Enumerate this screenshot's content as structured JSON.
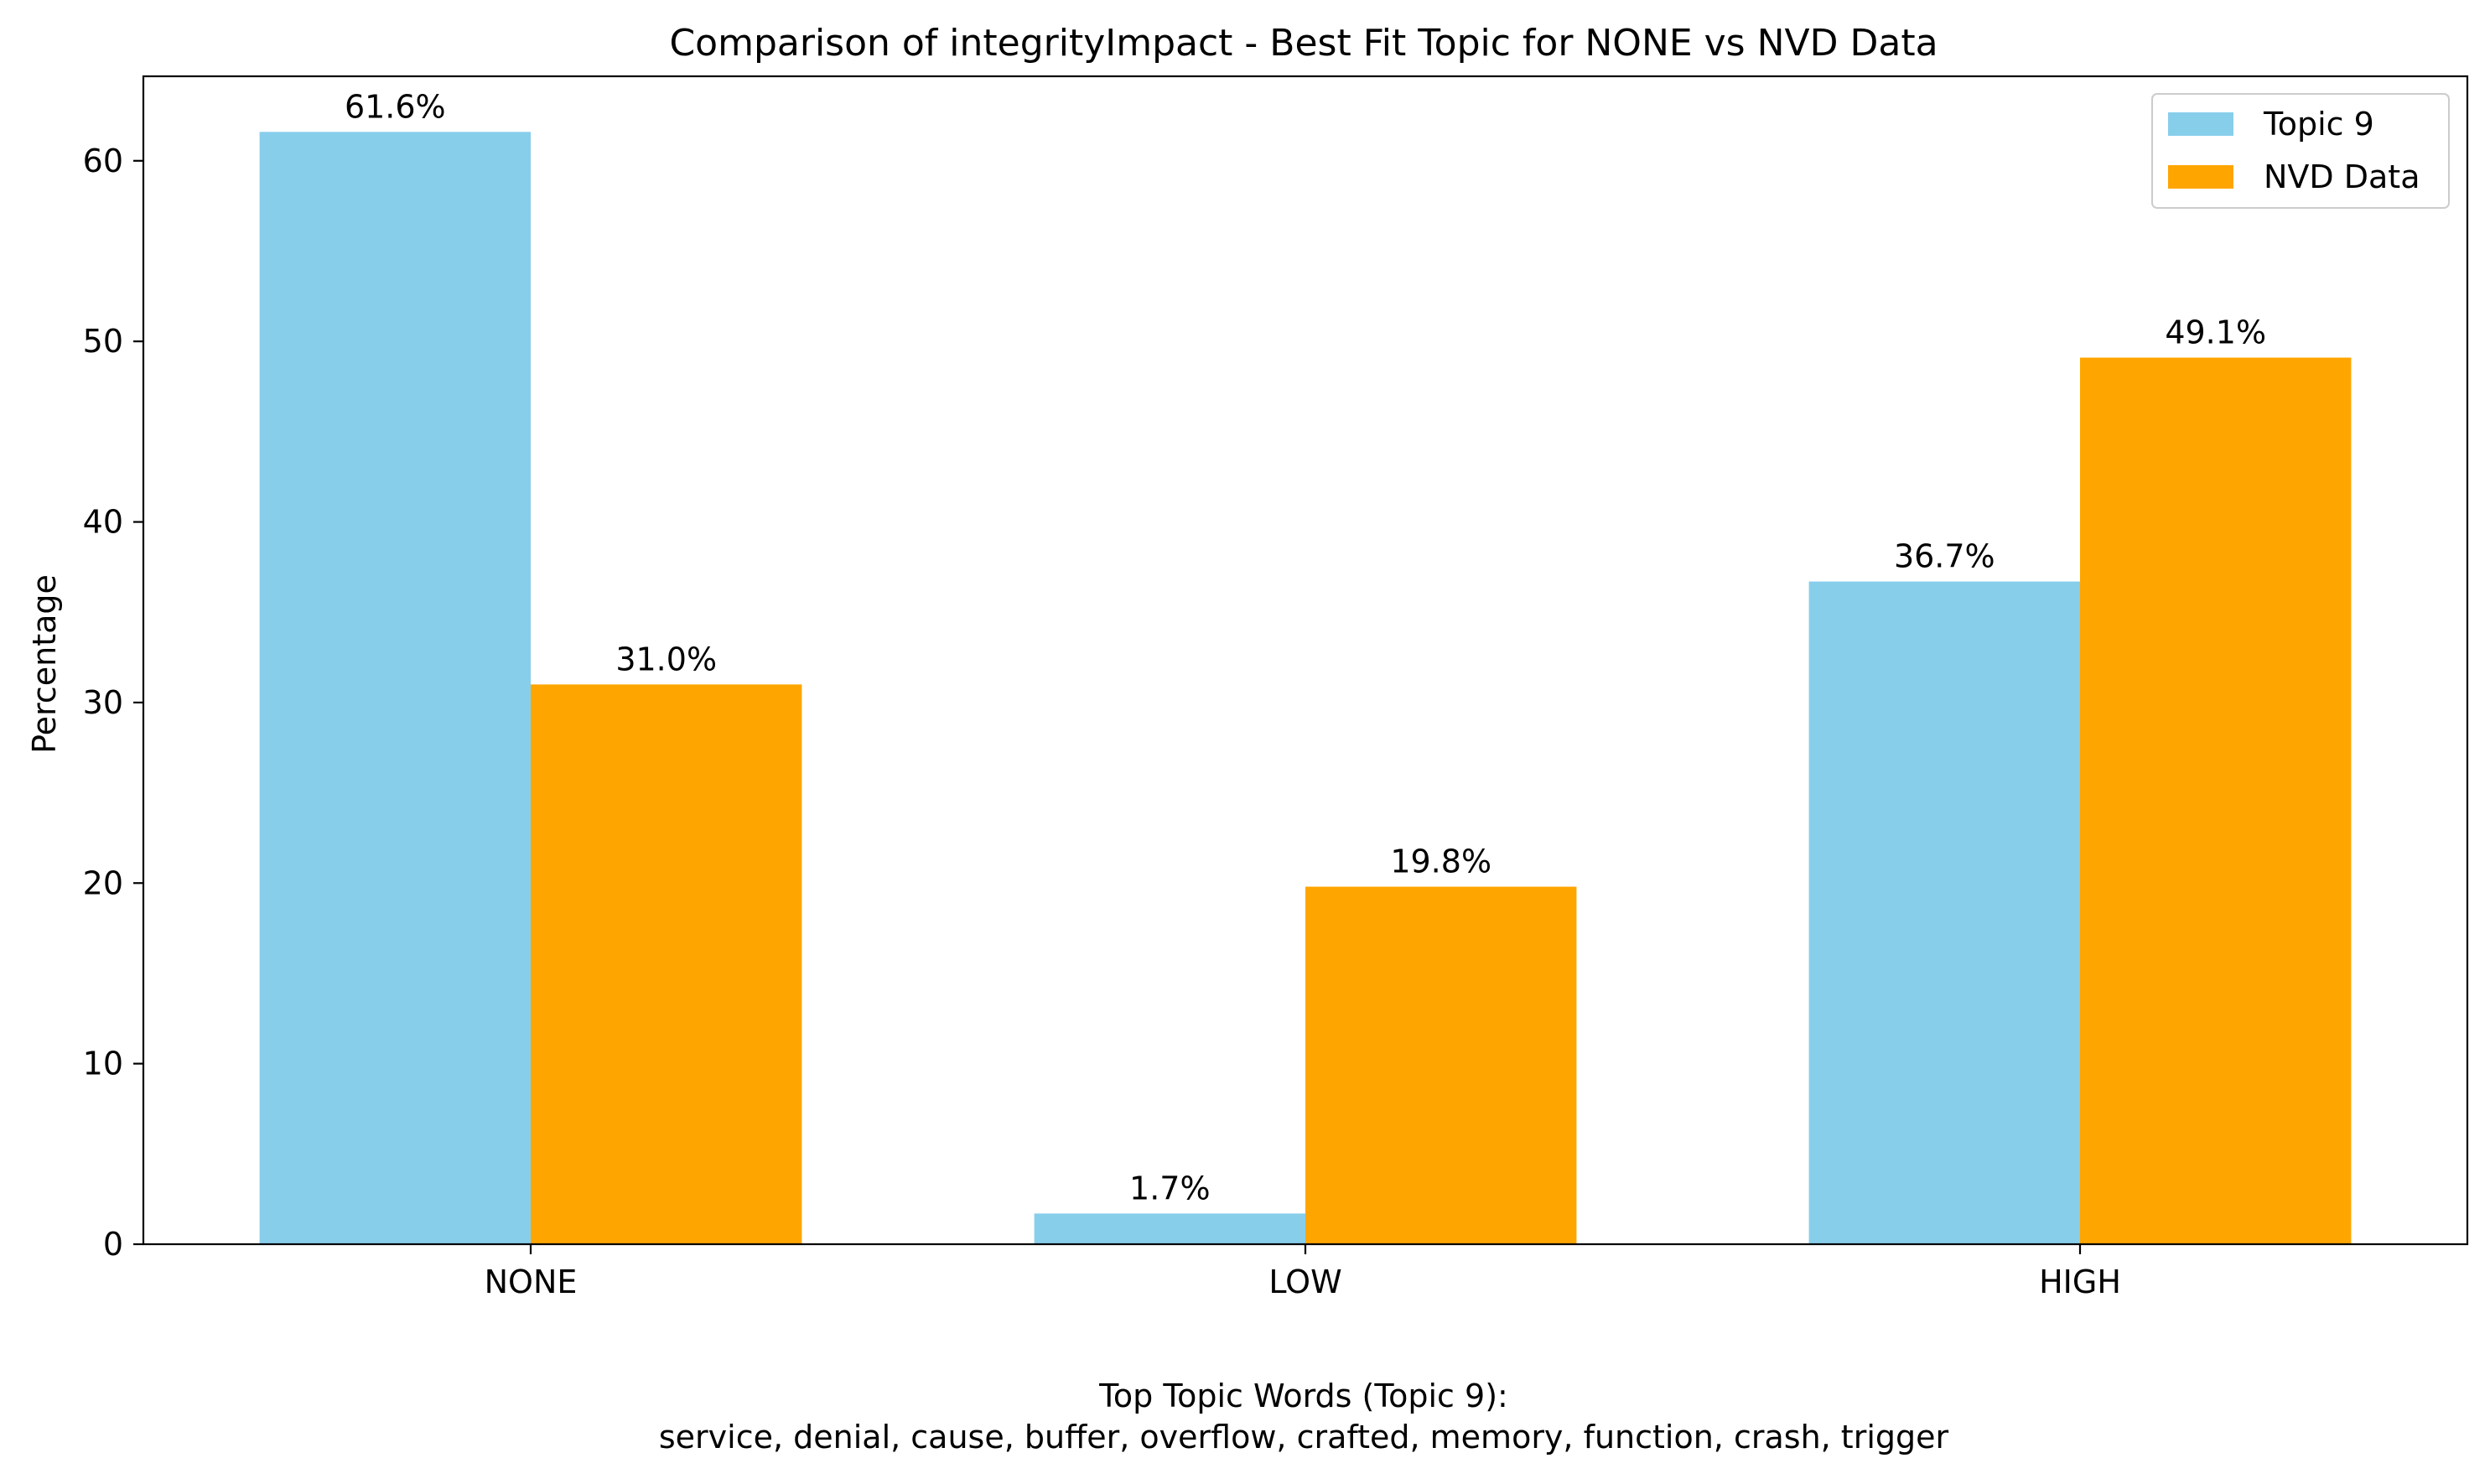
{
  "chart_data": {
    "type": "bar",
    "title": "Comparison of integrityImpact - Best Fit Topic for NONE vs NVD Data",
    "xlabel": "",
    "ylabel": "Percentage",
    "categories": [
      "NONE",
      "LOW",
      "HIGH"
    ],
    "series": [
      {
        "name": "Topic 9",
        "values": [
          61.6,
          1.7,
          36.7
        ],
        "labels": [
          "61.6%",
          "1.7%",
          "36.7%"
        ],
        "color": "#87CEEB"
      },
      {
        "name": "NVD Data",
        "values": [
          31.0,
          19.8,
          49.1
        ],
        "labels": [
          "31.0%",
          "19.8%",
          "49.1%"
        ],
        "color": "#FFA500"
      }
    ],
    "ylim": [
      0,
      64.68
    ],
    "yticks": [
      0,
      10,
      20,
      30,
      40,
      50,
      60
    ],
    "grid": false,
    "legend_position": "top-right"
  },
  "footer": {
    "line1": "Top Topic Words (Topic 9):",
    "line2": "service,  denial,  cause,  buffer,  overflow,  crafted,  memory,  function,  crash,  trigger"
  }
}
